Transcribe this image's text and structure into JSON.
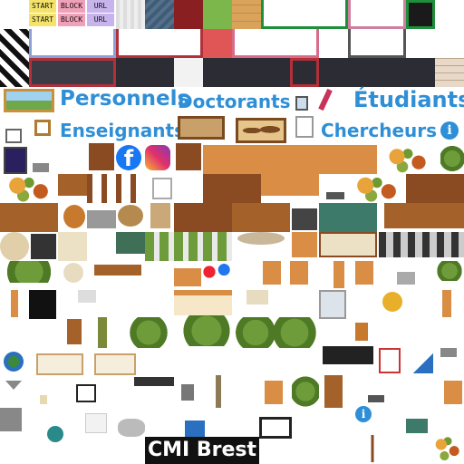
{
  "tags": {
    "start_top": "START",
    "block_top": "BLOCK",
    "url_top": "URL",
    "start_bottom": "START",
    "block_bottom": "BLOCK",
    "url_bottom": "URL"
  },
  "labels": {
    "personnels": "Personnels",
    "doctorants": "Doctorants",
    "etudiants": "Étudiants",
    "enseignants": "Enseignants",
    "chercheurs": "Chercheurs"
  },
  "footer": {
    "title": "CMI Brest"
  },
  "colors": {
    "label_blue": "#2f8fd6",
    "start_bg": "#f4e36a",
    "block_bg": "#f0a0b8",
    "url_bg": "#c8b4ec",
    "facebook": "#1877f2"
  },
  "icons": [
    "facebook-icon",
    "instagram-icon",
    "info-icon",
    "clock-icon",
    "world-map-icon",
    "globe-icon"
  ]
}
